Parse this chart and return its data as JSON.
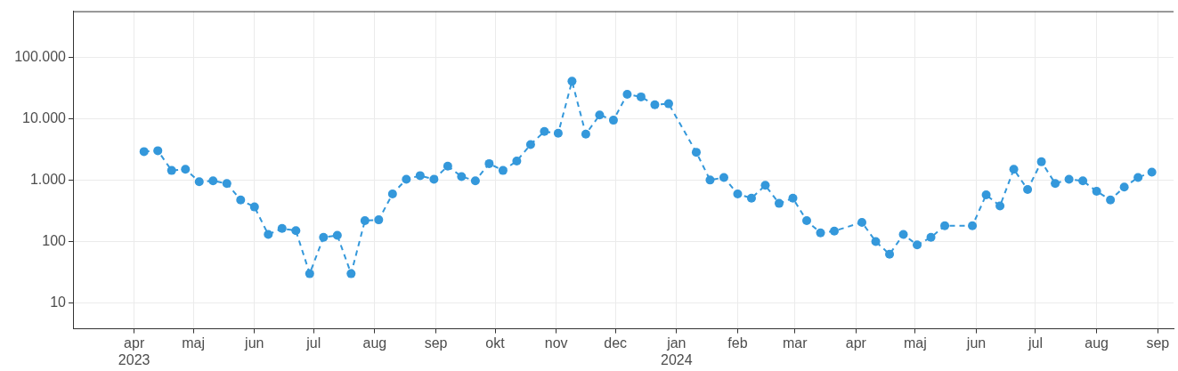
{
  "chart_data": {
    "type": "line",
    "x": [
      "2023-04-06",
      "2023-04-13",
      "2023-04-20",
      "2023-04-27",
      "2023-05-04",
      "2023-05-11",
      "2023-05-18",
      "2023-05-25",
      "2023-06-01",
      "2023-06-08",
      "2023-06-15",
      "2023-06-22",
      "2023-06-29",
      "2023-07-06",
      "2023-07-13",
      "2023-07-20",
      "2023-07-27",
      "2023-08-03",
      "2023-08-10",
      "2023-08-17",
      "2023-08-24",
      "2023-08-31",
      "2023-09-07",
      "2023-09-14",
      "2023-09-21",
      "2023-09-28",
      "2023-10-05",
      "2023-10-12",
      "2023-10-19",
      "2023-10-26",
      "2023-11-02",
      "2023-11-09",
      "2023-11-16",
      "2023-11-23",
      "2023-11-30",
      "2023-12-07",
      "2023-12-14",
      "2023-12-21",
      "2023-12-28",
      "2024-01-11",
      "2024-01-18",
      "2024-01-25",
      "2024-02-01",
      "2024-02-08",
      "2024-02-15",
      "2024-02-22",
      "2024-02-29",
      "2024-03-07",
      "2024-03-14",
      "2024-03-21",
      "2024-04-04",
      "2024-04-11",
      "2024-04-18",
      "2024-04-25",
      "2024-05-02",
      "2024-05-09",
      "2024-05-16",
      "2024-05-30",
      "2024-06-06",
      "2024-06-13",
      "2024-06-20",
      "2024-06-27",
      "2024-07-04",
      "2024-07-11",
      "2024-07-18",
      "2024-07-25",
      "2024-08-01",
      "2024-08-08",
      "2024-08-15",
      "2024-08-22",
      "2024-08-29"
    ],
    "series": [
      {
        "color": "#3498db",
        "values": [
          2900,
          3000,
          1430,
          1500,
          940,
          970,
          880,
          475,
          365,
          130,
          163,
          150,
          30,
          117,
          126,
          30,
          218,
          225,
          595,
          1030,
          1180,
          1030,
          1680,
          1140,
          970,
          1850,
          1430,
          2040,
          3780,
          6150,
          5760,
          40400,
          5580,
          11400,
          9400,
          24800,
          22500,
          16800,
          17400,
          2830,
          1000,
          1100,
          595,
          506,
          820,
          417,
          506,
          218,
          138,
          148,
          205,
          100,
          62,
          130,
          88,
          117,
          180,
          180,
          575,
          378,
          1500,
          700,
          1980,
          880,
          1030,
          970,
          656,
          475,
          770,
          1100,
          1340
        ]
      }
    ],
    "xlim": [
      "2023-03-01",
      "2024-09-09"
    ],
    "xticks": [
      {
        "value": "2023-04-01",
        "label": "apr\n2023"
      },
      {
        "value": "2023-05-01",
        "label": "maj"
      },
      {
        "value": "2023-06-01",
        "label": "jun"
      },
      {
        "value": "2023-07-01",
        "label": "jul"
      },
      {
        "value": "2023-08-01",
        "label": "aug"
      },
      {
        "value": "2023-09-01",
        "label": "sep"
      },
      {
        "value": "2023-10-01",
        "label": "okt"
      },
      {
        "value": "2023-11-01",
        "label": "nov"
      },
      {
        "value": "2023-12-01",
        "label": "dec"
      },
      {
        "value": "2024-01-01",
        "label": "jan\n2024"
      },
      {
        "value": "2024-02-01",
        "label": "feb"
      },
      {
        "value": "2024-03-01",
        "label": "mar"
      },
      {
        "value": "2024-04-01",
        "label": "apr"
      },
      {
        "value": "2024-05-01",
        "label": "maj"
      },
      {
        "value": "2024-06-01",
        "label": "jun"
      },
      {
        "value": "2024-07-01",
        "label": "jul"
      },
      {
        "value": "2024-08-01",
        "label": "aug"
      },
      {
        "value": "2024-09-01",
        "label": "sep"
      }
    ],
    "ylim": [
      3.8,
      557000
    ],
    "yticks": [
      10,
      100,
      {
        "value": 1000,
        "label": "1.000"
      },
      {
        "value": 10000,
        "label": "10.000"
      },
      {
        "value": 100000,
        "label": "100.000"
      }
    ],
    "log": "y",
    "grid": true,
    "legend": false,
    "marker": "circle",
    "line_style": "dashed"
  }
}
